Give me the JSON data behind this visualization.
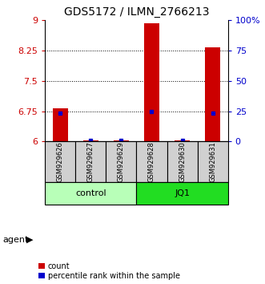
{
  "title": "GDS5172 / ILMN_2766213",
  "samples": [
    "GSM929626",
    "GSM929627",
    "GSM929629",
    "GSM929628",
    "GSM929630",
    "GSM929631"
  ],
  "red_values": [
    6.82,
    6.02,
    6.02,
    8.92,
    6.02,
    8.32
  ],
  "blue_values": [
    6.7,
    6.02,
    6.02,
    6.75,
    6.02,
    6.7
  ],
  "ylim_left": [
    6,
    9
  ],
  "ylim_right": [
    0,
    100
  ],
  "yticks_left": [
    6,
    6.75,
    7.5,
    8.25,
    9
  ],
  "yticks_right": [
    0,
    25,
    50,
    75,
    100
  ],
  "ytick_labels_left": [
    "6",
    "6.75",
    "7.5",
    "8.25",
    "9"
  ],
  "ytick_labels_right": [
    "0",
    "25",
    "50",
    "75",
    "100%"
  ],
  "hlines": [
    6.75,
    7.5,
    8.25
  ],
  "groups": [
    {
      "label": "control",
      "indices": [
        0,
        1,
        2
      ],
      "color": "#b8ffb8"
    },
    {
      "label": "JQ1",
      "indices": [
        3,
        4,
        5
      ],
      "color": "#22dd22"
    }
  ],
  "agent_label": "agent",
  "bar_width": 0.5,
  "red_color": "#cc0000",
  "blue_color": "#0000cc",
  "sample_box_color": "#d0d0d0",
  "left_tick_color": "#cc0000",
  "right_tick_color": "#0000cc",
  "legend_red": "count",
  "legend_blue": "percentile rank within the sample",
  "title_fontsize": 10,
  "tick_fontsize": 8,
  "sample_fontsize": 6,
  "group_fontsize": 8,
  "legend_fontsize": 7
}
